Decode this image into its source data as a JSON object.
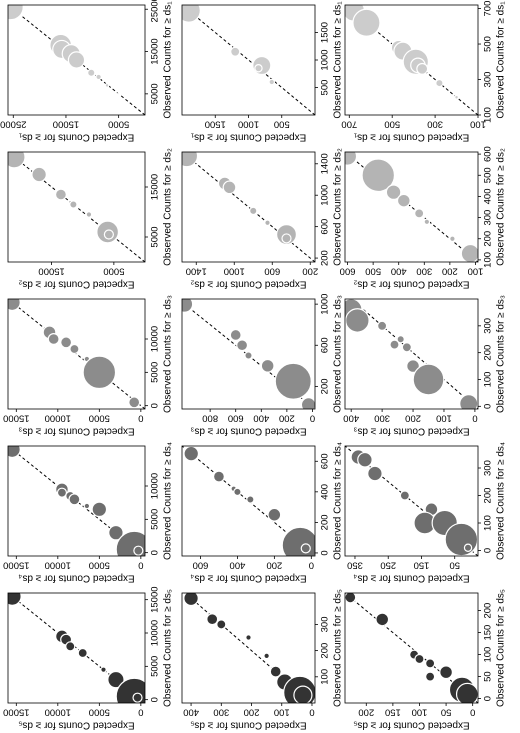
{
  "chart_data": [
    {
      "type": "scatter",
      "xlabel": "Observed Counts for ≥ ds₁",
      "ylabel": "Expected Counts for ≥ ds₁",
      "color": "#cccccc",
      "x": [
        25500,
        16500,
        15500,
        14500,
        13000,
        10000,
        9000,
        7000,
        5000
      ],
      "values": [
        25500,
        16000,
        15800,
        14000,
        13000,
        10200,
        8800,
        7200,
        5000
      ],
      "sizes": [
        14,
        12,
        10,
        10,
        9,
        4,
        3,
        2,
        1
      ],
      "xlim": [
        0,
        26000
      ],
      "ylim": [
        0,
        26000
      ],
      "xticks": [
        5000,
        15000,
        25000
      ],
      "yticks": [
        5000,
        15000,
        25000
      ]
    },
    {
      "type": "scatter",
      "xlabel": "Observed Counts for ≥ ds₁",
      "ylabel": "Expected Counts for ≥ ds₁",
      "color": "#cccccc",
      "x": [
        1900,
        1150,
        900,
        850,
        600
      ],
      "values": [
        1900,
        1200,
        800,
        850,
        650
      ],
      "sizes": [
        13,
        5,
        10,
        4,
        3
      ],
      "xlim": [
        0,
        2000
      ],
      "ylim": [
        0,
        2000
      ],
      "xticks": [
        500,
        1000,
        1500
      ],
      "yticks": [
        500,
        1000,
        1500
      ]
    },
    {
      "type": "scatter",
      "xlabel": "Observed Counts for ≥ ds₁",
      "ylabel": "Expected Counts for ≥ ds₁",
      "color": "#cccccc",
      "x": [
        690,
        620,
        480,
        460,
        400,
        380,
        360,
        280,
        200
      ],
      "values": [
        680,
        620,
        470,
        450,
        390,
        380,
        360,
        280,
        200
      ],
      "sizes": [
        12,
        15,
        8,
        10,
        14,
        8,
        6,
        4,
        2
      ],
      "xlim": [
        100,
        720
      ],
      "ylim": [
        100,
        720
      ],
      "xticks": [
        100,
        300,
        500,
        700
      ],
      "yticks": [
        100,
        300,
        500,
        700
      ]
    },
    {
      "type": "scatter",
      "xlabel": "Observed Counts for ≥ ds₂",
      "ylabel": "Expected Counts for ≥ ds₂",
      "color": "#b4b4b4",
      "x": [
        21000,
        17500,
        13500,
        11500,
        9500,
        6000,
        5500
      ],
      "values": [
        21000,
        17000,
        13500,
        11500,
        9000,
        6000,
        5800
      ],
      "sizes": [
        12,
        8,
        6,
        4,
        3,
        12,
        5
      ],
      "xlim": [
        0,
        22000
      ],
      "ylim": [
        0,
        22000
      ],
      "xticks": [
        5000,
        15000
      ],
      "yticks": [
        5000,
        15000
      ]
    },
    {
      "type": "scatter",
      "xlabel": "Observed Counts for ≥ ds₂",
      "ylabel": "Expected Counts for ≥ ds₂",
      "color": "#b4b4b4",
      "x": [
        1500,
        1150,
        1100,
        800,
        650,
        500,
        450
      ],
      "values": [
        1500,
        1100,
        1050,
        800,
        650,
        450,
        450
      ],
      "sizes": [
        12,
        7,
        7,
        4,
        3,
        11,
        5
      ],
      "xlim": [
        150,
        1550
      ],
      "ylim": [
        150,
        1550
      ],
      "xticks": [
        200,
        600,
        1000,
        1400
      ],
      "yticks": [
        200,
        600,
        1000,
        1400
      ]
    },
    {
      "type": "scatter",
      "xlabel": "Observed Counts for ≥ ds₂",
      "ylabel": "Expected Counts for ≥ ds₂",
      "color": "#b4b4b4",
      "x": [
        590,
        500,
        420,
        380,
        320,
        280,
        200,
        130
      ],
      "values": [
        600,
        480,
        420,
        380,
        320,
        290,
        190,
        120
      ],
      "sizes": [
        10,
        18,
        8,
        7,
        5,
        3,
        3,
        10
      ],
      "xlim": [
        90,
        610
      ],
      "ylim": [
        90,
        610
      ],
      "xticks": [
        100,
        200,
        300,
        400,
        500,
        600
      ],
      "yticks": [
        100,
        200,
        300,
        400,
        500,
        600
      ]
    },
    {
      "type": "scatter",
      "xlabel": "Observed Counts for ≥ ds₃",
      "ylabel": "Expected Counts for ≥ ds₃",
      "color": "#8c8c8c",
      "x": [
        15500,
        11000,
        10000,
        9500,
        8500,
        7000,
        5000,
        500
      ],
      "values": [
        15500,
        11000,
        10500,
        9000,
        8000,
        6500,
        5000,
        800
      ],
      "sizes": [
        9,
        7,
        6,
        6,
        5,
        3,
        18,
        6
      ],
      "xlim": [
        -500,
        16000
      ],
      "ylim": [
        -500,
        16000
      ],
      "xticks": [
        0,
        5000,
        10000
      ],
      "yticks": [
        0,
        5000,
        10000,
        15000
      ]
    },
    {
      "type": "scatter",
      "xlabel": "Observed Counts for ≥ ds₃",
      "ylabel": "Expected Counts for ≥ ds₃",
      "color": "#8c8c8c",
      "x": [
        1000,
        700,
        600,
        500,
        400,
        250,
        20
      ],
      "values": [
        1000,
        600,
        550,
        500,
        350,
        150,
        30
      ],
      "sizes": [
        9,
        6,
        6,
        4,
        7,
        20,
        8
      ],
      "xlim": [
        -20,
        1050
      ],
      "ylim": [
        -20,
        1020
      ],
      "xticks": [
        200,
        600,
        1000
      ],
      "yticks": [
        0,
        200,
        400,
        600,
        800
      ]
    },
    {
      "type": "scatter",
      "xlabel": "Observed Counts for ≥ ds₃",
      "ylabel": "Expected Counts for ≥ ds₃",
      "color": "#8c8c8c",
      "x": [
        360,
        320,
        300,
        250,
        230,
        220,
        150,
        100,
        10
      ],
      "values": [
        400,
        380,
        300,
        240,
        260,
        220,
        200,
        150,
        20
      ],
      "sizes": [
        12,
        13,
        5,
        4,
        5,
        5,
        7,
        17,
        10
      ],
      "xlim": [
        -10,
        400
      ],
      "ylim": [
        -10,
        420
      ],
      "xticks": [
        0,
        100,
        200,
        300
      ],
      "yticks": [
        0,
        100,
        200,
        300,
        400
      ]
    },
    {
      "type": "scatter",
      "xlabel": "Observed Counts for ≥ ds₄",
      "ylabel": "Expected Counts for ≥ ds₄",
      "color": "#6e6e6e",
      "x": [
        15500,
        9500,
        9000,
        8500,
        8000,
        7000,
        6500,
        3000,
        500,
        300
      ],
      "values": [
        15500,
        9500,
        9500,
        8500,
        8000,
        6500,
        5000,
        3000,
        800,
        300
      ],
      "sizes": [
        9,
        7,
        5,
        5,
        6,
        3,
        8,
        8,
        20,
        5
      ],
      "xlim": [
        -500,
        16000
      ],
      "ylim": [
        -500,
        16000
      ],
      "xticks": [
        0,
        5000,
        10000
      ],
      "yticks": [
        0,
        5000,
        10000,
        15000
      ]
    },
    {
      "type": "scatter",
      "xlabel": "Observed Counts for ≥ ds₄",
      "ylabel": "Expected Counts for ≥ ds₄",
      "color": "#6e6e6e",
      "x": [
        650,
        500,
        420,
        400,
        350,
        250,
        50,
        30
      ],
      "values": [
        650,
        500,
        420,
        400,
        330,
        200,
        60,
        30
      ],
      "sizes": [
        8,
        6,
        3,
        4,
        4,
        7,
        20,
        5
      ],
      "xlim": [
        -20,
        700
      ],
      "ylim": [
        -20,
        700
      ],
      "xticks": [
        0,
        200,
        400,
        600
      ],
      "yticks": [
        0,
        200,
        400,
        600
      ]
    },
    {
      "type": "scatter",
      "xlabel": "Observed Counts for ≥ ds₄",
      "ylabel": "Expected Counts for ≥ ds₄",
      "color": "#6e6e6e",
      "x": [
        340,
        330,
        280,
        200,
        150,
        100,
        100,
        40,
        10
      ],
      "values": [
        340,
        320,
        290,
        200,
        120,
        140,
        80,
        30,
        10
      ],
      "sizes": [
        8,
        8,
        8,
        5,
        7,
        12,
        14,
        18,
        4
      ],
      "xlim": [
        -20,
        380
      ],
      "ylim": [
        -20,
        380
      ],
      "xticks": [
        0,
        100,
        200,
        300
      ],
      "yticks": [
        50,
        150,
        250,
        350
      ]
    },
    {
      "type": "scatter",
      "xlabel": "Observed Counts for ≥ ds₅",
      "ylabel": "Expected Counts for ≥ ds₅",
      "color": "#333333",
      "x": [
        15500,
        9500,
        9000,
        8000,
        7000,
        4500,
        3000,
        500,
        300
      ],
      "values": [
        15500,
        9500,
        9000,
        8500,
        7000,
        4500,
        3000,
        800,
        400
      ],
      "sizes": [
        10,
        7,
        6,
        5,
        5,
        3,
        9,
        20,
        5
      ],
      "xlim": [
        -500,
        16000
      ],
      "ylim": [
        -500,
        16000
      ],
      "xticks": [
        0,
        5000,
        10000,
        15000
      ],
      "yticks": [
        0,
        5000,
        10000,
        15000
      ]
    },
    {
      "type": "scatter",
      "xlabel": "Observed Counts for ≥ ds₅",
      "ylabel": "Expected Counts for ≥ ds₅",
      "color": "#333333",
      "x": [
        400,
        320,
        300,
        250,
        180,
        120,
        80,
        40,
        30
      ],
      "values": [
        400,
        330,
        300,
        210,
        150,
        120,
        90,
        40,
        30
      ],
      "sizes": [
        8,
        6,
        5,
        3,
        3,
        6,
        9,
        18,
        10
      ],
      "xlim": [
        0,
        420
      ],
      "ylim": [
        -10,
        430
      ],
      "xticks": [
        100,
        200,
        300
      ],
      "yticks": [
        0,
        100,
        200,
        300,
        400
      ]
    },
    {
      "type": "scatter",
      "xlabel": "Observed Counts for ≥ ds₅",
      "ylabel": "Expected Counts for ≥ ds₅",
      "color": "#333333",
      "x": [
        230,
        180,
        100,
        90,
        80,
        60,
        50,
        20,
        10
      ],
      "values": [
        230,
        170,
        110,
        100,
        80,
        50,
        80,
        20,
        10
      ],
      "sizes": [
        6,
        7,
        5,
        5,
        5,
        7,
        5,
        14,
        12
      ],
      "xlim": [
        -10,
        240
      ],
      "ylim": [
        -10,
        240
      ],
      "xticks": [
        0,
        50,
        100,
        150,
        200
      ],
      "yticks": [
        0,
        50,
        100,
        150,
        200
      ]
    }
  ]
}
